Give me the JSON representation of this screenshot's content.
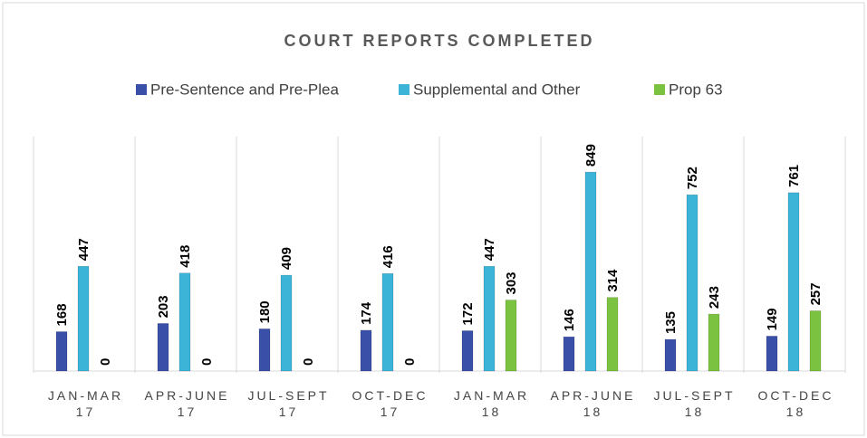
{
  "chart_data": {
    "type": "bar",
    "title": "COURT REPORTS COMPLETED",
    "categories": [
      "JAN-MAR 17",
      "APR-JUNE 17",
      "JUL-SEPT 17",
      "OCT-DEC 17",
      "JAN-MAR 18",
      "APR-JUNE 18",
      "JUL-SEPT 18",
      "OCT-DEC 18"
    ],
    "series": [
      {
        "name": "Pre-Sentence and Pre-Plea",
        "color": "#3a4fa8",
        "values": [
          168,
          203,
          180,
          174,
          172,
          146,
          135,
          149
        ]
      },
      {
        "name": "Supplemental and Other",
        "color": "#3cb4d8",
        "values": [
          447,
          418,
          409,
          416,
          447,
          849,
          752,
          761
        ]
      },
      {
        "name": "Prop 63",
        "color": "#7cc241",
        "values": [
          0,
          0,
          0,
          0,
          303,
          314,
          243,
          257
        ]
      }
    ],
    "ylim": [
      0,
      1000
    ],
    "legend": "top"
  }
}
